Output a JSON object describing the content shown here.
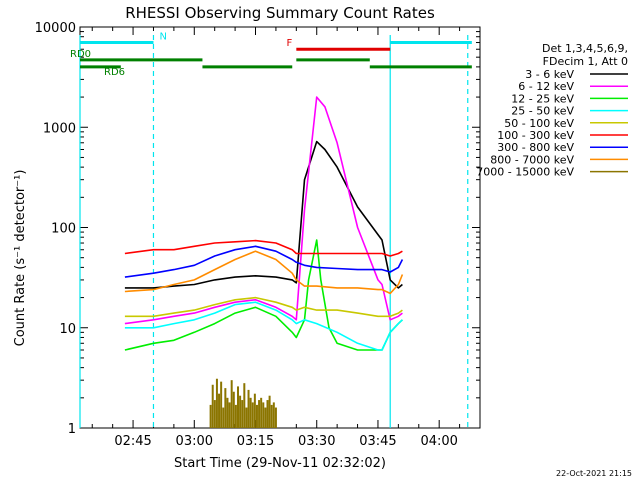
{
  "chart_data": {
    "type": "line",
    "title": "RHESSI Observing Summary Count Rates",
    "xlabel": "Start Time (29-Nov-11 02:32:02)",
    "ylabel": "Count Rate (s⁻¹ detector⁻¹)",
    "yscale": "log",
    "ylim": [
      1,
      10000
    ],
    "xlim_minutes": [
      152,
      250
    ],
    "x_ticks": [
      {
        "label": "02:45",
        "t": 165
      },
      {
        "label": "03:00",
        "t": 180
      },
      {
        "label": "03:15",
        "t": 195
      },
      {
        "label": "03:30",
        "t": 210
      },
      {
        "label": "03:45",
        "t": 225
      },
      {
        "label": "04:00",
        "t": 240
      }
    ],
    "y_ticks": [
      1,
      10,
      100,
      1000,
      10000
    ],
    "legend_header": [
      "Det 1,3,4,5,6,9,",
      "FDecim 1, Att 0"
    ],
    "legend_position": "right",
    "timestamp": "22-Oct-2021 21:15",
    "flags": [
      {
        "label": "N",
        "color": "#00e5ee",
        "level": 7000,
        "segments": [
          [
            152,
            170
          ],
          [
            228,
            248
          ]
        ]
      },
      {
        "label": "F",
        "color": "#e00000",
        "level": 6000,
        "segments": [
          [
            205,
            228
          ]
        ]
      },
      {
        "label": "RD0",
        "color": "#008000",
        "level": 4700,
        "segments": [
          [
            152,
            182
          ],
          [
            205,
            223
          ]
        ]
      },
      {
        "label": "RD6",
        "color": "#008000",
        "level": 4000,
        "segments": [
          [
            152,
            162
          ],
          [
            182,
            204
          ],
          [
            223,
            248
          ]
        ]
      }
    ],
    "vertical_markers": [
      {
        "t": 152,
        "style": "solid",
        "color": "#00e5ee"
      },
      {
        "t": 170,
        "style": "dashed",
        "color": "#00e5ee"
      },
      {
        "t": 228,
        "style": "solid",
        "color": "#00e5ee"
      },
      {
        "t": 247,
        "style": "dashed",
        "color": "#00e5ee"
      }
    ],
    "series": [
      {
        "name": "3 - 6 keV",
        "color": "#000000",
        "x": [
          163,
          170,
          175,
          180,
          185,
          190,
          195,
          200,
          204,
          205,
          207,
          210,
          212,
          215,
          220,
          225,
          226,
          228,
          230,
          231
        ],
        "y": [
          25,
          25,
          26,
          27,
          30,
          32,
          33,
          32,
          30,
          28,
          300,
          720,
          600,
          400,
          160,
          85,
          75,
          30,
          25,
          27
        ]
      },
      {
        "name": "6 - 12 keV",
        "color": "#ff00ff",
        "x": [
          163,
          170,
          175,
          180,
          185,
          190,
          195,
          200,
          204,
          205,
          207,
          210,
          212,
          215,
          220,
          225,
          226,
          228,
          230,
          231
        ],
        "y": [
          11,
          12,
          13,
          14,
          16,
          18,
          19,
          16,
          13,
          12,
          150,
          2000,
          1600,
          700,
          100,
          30,
          27,
          12,
          13,
          14
        ]
      },
      {
        "name": "12 - 25 keV",
        "color": "#00ee00",
        "x": [
          163,
          170,
          175,
          180,
          185,
          190,
          195,
          200,
          204,
          205,
          207,
          208,
          210,
          211,
          213,
          215,
          220,
          225,
          226,
          228,
          230,
          231
        ],
        "y": [
          6,
          7,
          7.5,
          9,
          11,
          14,
          16,
          13,
          9,
          8,
          12,
          30,
          75,
          30,
          10,
          7,
          6,
          6,
          6,
          9,
          11,
          12
        ]
      },
      {
        "name": "25 - 50 keV",
        "color": "#00ffff",
        "x": [
          163,
          170,
          175,
          180,
          185,
          190,
          195,
          200,
          204,
          205,
          207,
          210,
          215,
          220,
          225,
          226,
          228,
          230,
          231
        ],
        "y": [
          10,
          10,
          11,
          12,
          14,
          17,
          18,
          15,
          12,
          11,
          12,
          11,
          9,
          7,
          6,
          6,
          9,
          11,
          12
        ]
      },
      {
        "name": "50 - 100 keV",
        "color": "#c8c800",
        "x": [
          163,
          170,
          175,
          180,
          185,
          190,
          195,
          200,
          204,
          205,
          207,
          210,
          215,
          220,
          225,
          226,
          228,
          230,
          231
        ],
        "y": [
          13,
          13,
          14,
          15,
          17,
          19,
          20,
          18,
          16,
          15,
          16,
          15,
          15,
          14,
          13,
          13,
          13,
          14,
          15
        ]
      },
      {
        "name": "100 - 300 keV",
        "color": "#ff0000",
        "x": [
          163,
          170,
          175,
          180,
          185,
          190,
          195,
          200,
          204,
          205,
          207,
          210,
          215,
          220,
          225,
          226,
          228,
          230,
          231
        ],
        "y": [
          55,
          60,
          60,
          65,
          70,
          72,
          74,
          70,
          60,
          55,
          55,
          55,
          55,
          55,
          55,
          55,
          52,
          55,
          58
        ]
      },
      {
        "name": "300 - 800 keV",
        "color": "#0000ff",
        "x": [
          163,
          170,
          175,
          180,
          185,
          190,
          195,
          200,
          204,
          205,
          207,
          210,
          215,
          220,
          225,
          226,
          228,
          230,
          231
        ],
        "y": [
          32,
          35,
          38,
          42,
          52,
          60,
          65,
          58,
          48,
          45,
          42,
          40,
          39,
          38,
          38,
          38,
          36,
          40,
          48
        ]
      },
      {
        "name": "800 - 7000 keV",
        "color": "#ff8c00",
        "x": [
          163,
          170,
          175,
          180,
          185,
          190,
          195,
          200,
          204,
          205,
          207,
          210,
          215,
          220,
          225,
          226,
          228,
          230,
          231
        ],
        "y": [
          23,
          24,
          27,
          30,
          38,
          48,
          58,
          48,
          35,
          30,
          26,
          26,
          25,
          25,
          24,
          24,
          22,
          27,
          34
        ]
      },
      {
        "name": "7000 - 15000 keV",
        "color": "#8b7500",
        "x": [],
        "y": [],
        "bursts": {
          "t_start": 184,
          "t_end": 200,
          "min": 1,
          "max": [
            1.7,
            2.7,
            1.9,
            3.1,
            2.2,
            2.9,
            1.6,
            2.5,
            2.0,
            1.8,
            3.0,
            2.3,
            1.7,
            2.6,
            2.1,
            1.9,
            2.8,
            1.6,
            2.4,
            2.0,
            1.8,
            2.2,
            1.7,
            1.9,
            2.0,
            1.8,
            1.6,
            1.9,
            2.1,
            1.7,
            1.8,
            1.6
          ]
        }
      }
    ]
  }
}
